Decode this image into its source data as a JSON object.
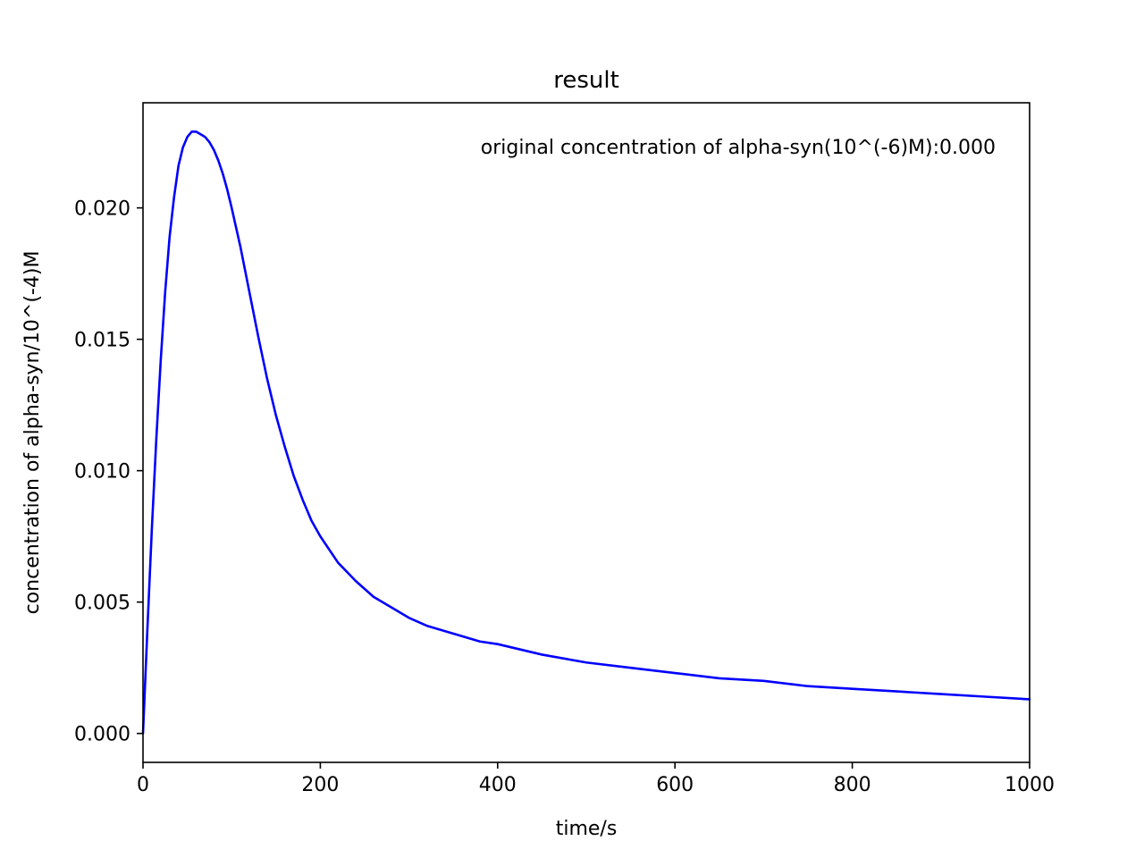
{
  "chart_data": {
    "type": "line",
    "title": "result",
    "xlabel": "time/s",
    "ylabel": "concentration of alpha-syn/10^(-4)M",
    "xlim": [
      0,
      1000
    ],
    "ylim": [
      -0.0011,
      0.024
    ],
    "xticks": [
      0,
      200,
      400,
      600,
      800,
      1000
    ],
    "xtick_labels": [
      "0",
      "200",
      "400",
      "600",
      "800",
      "1000"
    ],
    "yticks": [
      0.0,
      0.005,
      0.01,
      0.015,
      0.02
    ],
    "ytick_labels": [
      "0.000",
      "0.005",
      "0.010",
      "0.015",
      "0.020"
    ],
    "grid": false,
    "annotation": "original concentration of alpha-syn(10^(-6)M):0.000",
    "line_color": "#0000ff",
    "series": [
      {
        "x": [
          0,
          5,
          10,
          15,
          20,
          25,
          30,
          35,
          40,
          45,
          50,
          55,
          60,
          65,
          70,
          75,
          80,
          85,
          90,
          95,
          100,
          110,
          120,
          130,
          140,
          150,
          160,
          170,
          180,
          190,
          200,
          220,
          240,
          260,
          280,
          300,
          320,
          340,
          360,
          380,
          400,
          450,
          500,
          550,
          600,
          650,
          700,
          750,
          800,
          850,
          900,
          950,
          1000
        ],
        "values": [
          0.0,
          0.004,
          0.0078,
          0.0112,
          0.0142,
          0.0168,
          0.0189,
          0.0204,
          0.0216,
          0.0223,
          0.0227,
          0.0229,
          0.0229,
          0.0228,
          0.0227,
          0.0225,
          0.0222,
          0.0218,
          0.0213,
          0.0207,
          0.02,
          0.0185,
          0.0168,
          0.0151,
          0.0135,
          0.0121,
          0.0109,
          0.0098,
          0.0089,
          0.0081,
          0.0075,
          0.0065,
          0.0058,
          0.0052,
          0.0048,
          0.0044,
          0.0041,
          0.0039,
          0.0037,
          0.0035,
          0.0034,
          0.003,
          0.0027,
          0.0025,
          0.0023,
          0.0021,
          0.002,
          0.0018,
          0.0017,
          0.0016,
          0.0015,
          0.0014,
          0.0013
        ]
      }
    ]
  }
}
